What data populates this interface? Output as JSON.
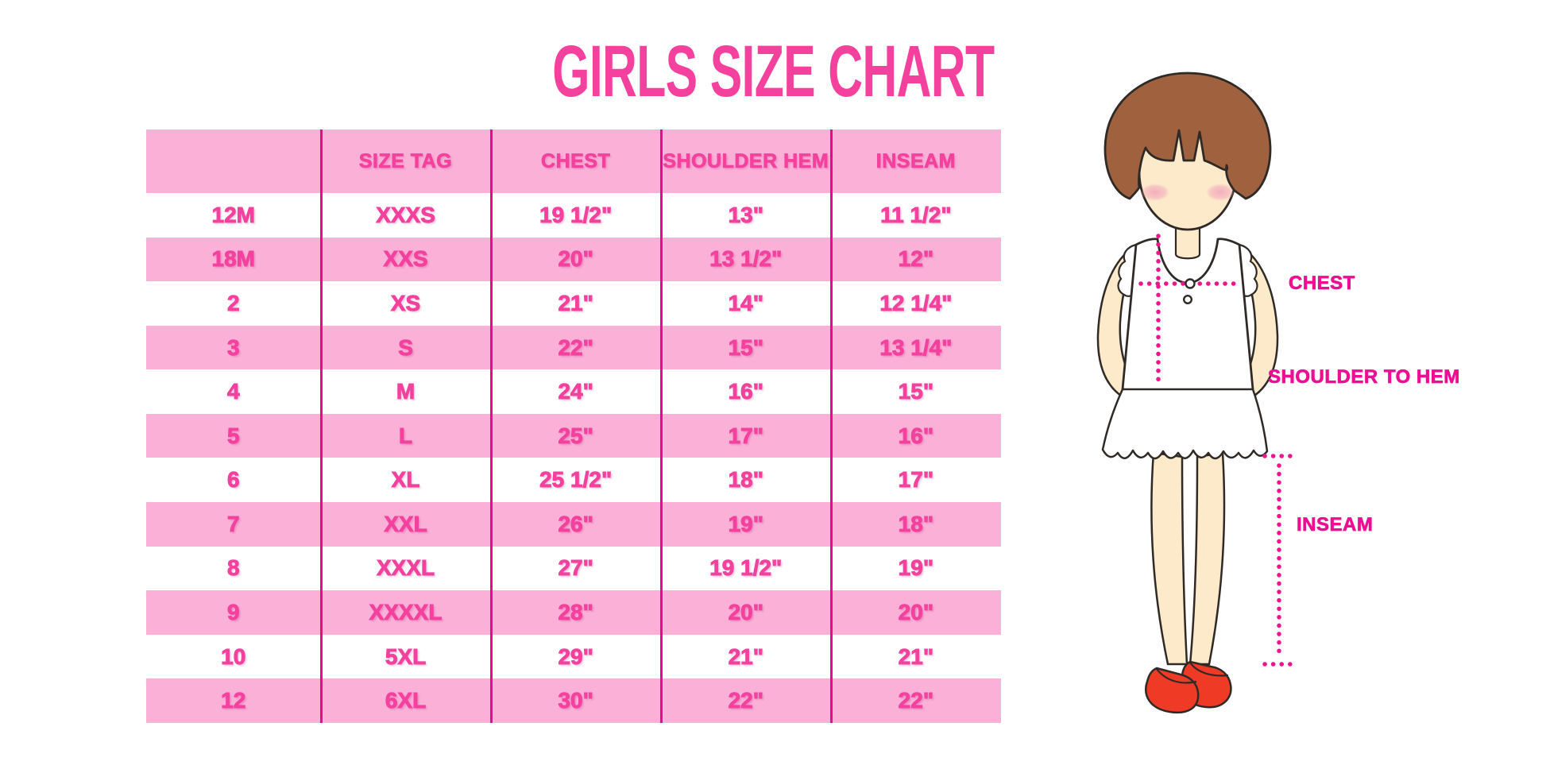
{
  "chart_data": {
    "type": "table",
    "title": "GIRLS SIZE CHART",
    "columns": [
      "",
      "SIZE TAG",
      "CHEST",
      "SHOULDER HEM",
      "INSEAM"
    ],
    "rows": [
      [
        "12M",
        "XXXS",
        "19 1/2\"",
        "13\"",
        "11 1/2\""
      ],
      [
        "18M",
        "XXS",
        "20\"",
        "13 1/2\"",
        "12\""
      ],
      [
        "2",
        "XS",
        "21\"",
        "14\"",
        "12 1/4\""
      ],
      [
        "3",
        "S",
        "22\"",
        "15\"",
        "13 1/4\""
      ],
      [
        "4",
        "M",
        "24\"",
        "16\"",
        "15\""
      ],
      [
        "5",
        "L",
        "25\"",
        "17\"",
        "16\""
      ],
      [
        "6",
        "XL",
        "25 1/2\"",
        "18\"",
        "17\""
      ],
      [
        "7",
        "XXL",
        "26\"",
        "19\"",
        "18\""
      ],
      [
        "8",
        "XXXL",
        "27\"",
        "19 1/2\"",
        "19\""
      ],
      [
        "9",
        "XXXXL",
        "28\"",
        "20\"",
        "20\""
      ],
      [
        "10",
        "5XL",
        "29\"",
        "21\"",
        "21\""
      ],
      [
        "12",
        "6XL",
        "30\"",
        "22\"",
        "22\""
      ]
    ],
    "row_striping": "alternating white/pink, header pink"
  },
  "diagram": {
    "labels": {
      "chest": "CHEST",
      "shoulder_to_hem": "SHOULDER TO HEM",
      "inseam": "INSEAM"
    }
  },
  "colors": {
    "accent_text": "#F4419E",
    "column_separator": "#E9098A",
    "row_pink": "#FBB0D8",
    "measure_label_pink": "#EE0D93",
    "dotted_line_pink": "#F0148C",
    "hair_brown": "#A0613F",
    "skin": "#FCEACA",
    "blush": "#F3ABBC",
    "shoe_red": "#EF3A26",
    "outline": "#2F2A26",
    "background": "#FFFFFF"
  }
}
